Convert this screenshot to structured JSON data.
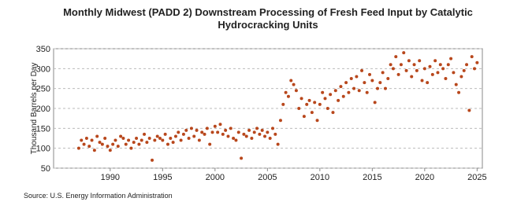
{
  "chart_data": {
    "type": "scatter",
    "title": [
      "Monthly Midwest (PADD 2) Downstream Processing of Fresh Feed Input by Catalytic",
      "Hydrocracking Units"
    ],
    "ylabel": "Thousand Barrels per Day",
    "source": "Source: U.S. Energy Information Administration",
    "xlim": [
      1984.6,
      2025.5
    ],
    "xticks": [
      1990,
      1995,
      2000,
      2005,
      2010,
      2015,
      2020,
      2025
    ],
    "ylim": [
      50,
      350
    ],
    "yticks": [
      50,
      100,
      150,
      200,
      250,
      300,
      350
    ],
    "grid": true,
    "series": [
      {
        "color": "#b8471c",
        "x": [
          1987,
          1987.25,
          1987.5,
          1987.75,
          1988,
          1988.25,
          1988.5,
          1988.75,
          1989,
          1989.25,
          1989.5,
          1989.75,
          1990,
          1990.25,
          1990.5,
          1990.75,
          1991,
          1991.25,
          1991.5,
          1991.75,
          1992,
          1992.25,
          1992.5,
          1992.75,
          1993,
          1993.25,
          1993.5,
          1993.75,
          1994,
          1994.25,
          1994.5,
          1994.75,
          1995,
          1995.25,
          1995.5,
          1995.75,
          1996,
          1996.25,
          1996.5,
          1996.75,
          1997,
          1997.25,
          1997.5,
          1997.75,
          1998,
          1998.25,
          1998.5,
          1998.75,
          1999,
          1999.25,
          1999.5,
          1999.75,
          2000,
          2000.25,
          2000.5,
          2000.75,
          2001,
          2001.25,
          2001.5,
          2001.75,
          2002,
          2002.25,
          2002.5,
          2002.75,
          2003,
          2003.25,
          2003.5,
          2003.75,
          2004,
          2004.25,
          2004.5,
          2004.75,
          2005,
          2005.25,
          2005.5,
          2005.75,
          2006,
          2006.25,
          2006.5,
          2006.75,
          2007,
          2007.25,
          2007.5,
          2007.75,
          2008,
          2008.25,
          2008.5,
          2008.75,
          2009,
          2009.25,
          2009.5,
          2009.75,
          2010,
          2010.25,
          2010.5,
          2010.75,
          2011,
          2011.25,
          2011.5,
          2011.75,
          2012,
          2012.25,
          2012.5,
          2012.75,
          2013,
          2013.25,
          2013.5,
          2013.75,
          2014,
          2014.25,
          2014.5,
          2014.75,
          2015,
          2015.25,
          2015.5,
          2015.75,
          2016,
          2016.25,
          2016.5,
          2016.75,
          2017,
          2017.25,
          2017.5,
          2017.75,
          2018,
          2018.25,
          2018.5,
          2018.75,
          2019,
          2019.25,
          2019.5,
          2019.75,
          2020,
          2020.25,
          2020.5,
          2020.75,
          2021,
          2021.25,
          2021.5,
          2021.75,
          2022,
          2022.25,
          2022.5,
          2022.75,
          2023,
          2023.25,
          2023.5,
          2023.75,
          2024,
          2024.25,
          2024.5,
          2024.75,
          2025
        ],
        "values": [
          100,
          120,
          110,
          125,
          105,
          120,
          95,
          130,
          115,
          110,
          125,
          105,
          95,
          110,
          120,
          105,
          130,
          125,
          110,
          120,
          100,
          115,
          125,
          110,
          120,
          135,
          115,
          125,
          70,
          120,
          130,
          125,
          120,
          135,
          110,
          125,
          115,
          130,
          140,
          120,
          135,
          145,
          125,
          150,
          130,
          145,
          120,
          140,
          135,
          150,
          110,
          140,
          155,
          140,
          160,
          135,
          145,
          130,
          150,
          125,
          120,
          140,
          75,
          135,
          130,
          145,
          125,
          140,
          150,
          135,
          145,
          130,
          140,
          125,
          150,
          135,
          110,
          170,
          210,
          240,
          230,
          270,
          260,
          245,
          200,
          225,
          180,
          210,
          220,
          190,
          215,
          170,
          210,
          240,
          225,
          200,
          235,
          190,
          245,
          220,
          255,
          230,
          265,
          240,
          275,
          250,
          280,
          245,
          295,
          265,
          240,
          285,
          270,
          215,
          250,
          265,
          290,
          250,
          275,
          310,
          300,
          330,
          285,
          310,
          340,
          295,
          320,
          280,
          310,
          295,
          320,
          270,
          300,
          265,
          305,
          285,
          320,
          290,
          310,
          300,
          275,
          310,
          325,
          290,
          260,
          240,
          280,
          295,
          310,
          195,
          330,
          300,
          315
        ]
      }
    ]
  }
}
